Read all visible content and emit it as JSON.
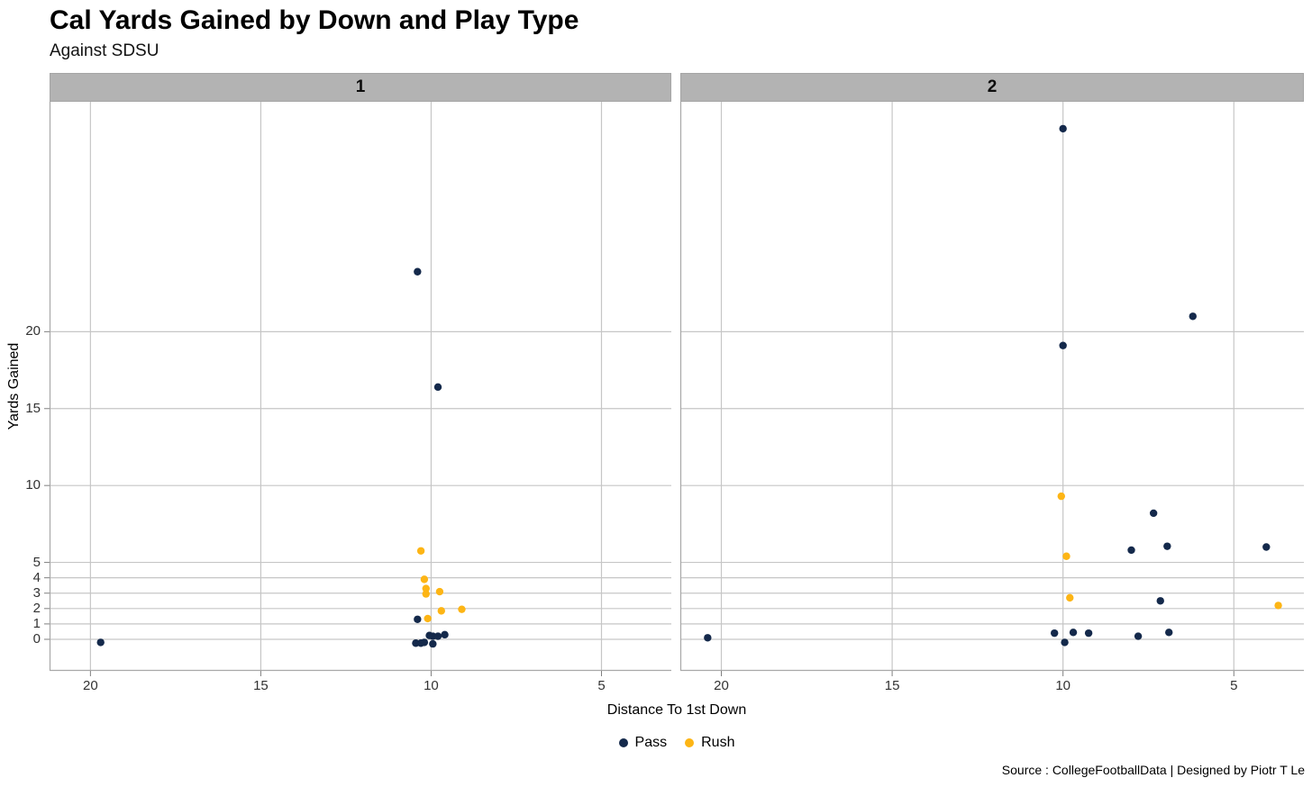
{
  "header": {
    "title": "Cal Yards Gained by Down and Play Type",
    "subtitle": "Against SDSU"
  },
  "caption": "Source : CollegeFootballData | Designed by Piotr T Le",
  "axes": {
    "x": {
      "title": "Distance To 1st Down",
      "breaks": [
        20,
        15,
        10,
        5
      ],
      "domain": [
        21.2,
        2.95
      ],
      "reversed": true
    },
    "y": {
      "title": "Yards Gained",
      "breaks": [
        0,
        1,
        2,
        3,
        4,
        5,
        10,
        15,
        20
      ],
      "domain": [
        -2.05,
        34.95
      ]
    }
  },
  "legend": {
    "items": [
      {
        "label": "Pass",
        "color": "#14294b"
      },
      {
        "label": "Rush",
        "color": "#fdb515"
      }
    ]
  },
  "colors": {
    "pass": "#14294b",
    "rush": "#fdb515",
    "strip_bg": "#b3b3b3",
    "grid": "#c6c6c6",
    "axis_line": "#a8a8a8",
    "tick": "#7f7f7f"
  },
  "chart_data": {
    "type": "scatter",
    "title": "Cal Yards Gained by Down and Play Type",
    "subtitle": "Against SDSU",
    "xlabel": "Distance To 1st Down",
    "ylabel": "Yards Gained",
    "x_reversed": true,
    "xlim": [
      21.2,
      2.95
    ],
    "ylim": [
      -2.05,
      34.95
    ],
    "x_breaks": [
      20,
      15,
      10,
      5
    ],
    "y_breaks": [
      0,
      1,
      2,
      3,
      4,
      5,
      10,
      15,
      20
    ],
    "grid": true,
    "legend_position": "bottom",
    "facet_variable": "Down",
    "facets": [
      {
        "label": "1",
        "series": [
          {
            "name": "Pass",
            "points": [
              [
                19.7,
                -0.2
              ],
              [
                10.4,
                23.9
              ],
              [
                9.8,
                16.4
              ],
              [
                10.4,
                1.3
              ],
              [
                10.45,
                -0.25
              ],
              [
                10.3,
                -0.25
              ],
              [
                10.2,
                -0.2
              ],
              [
                9.95,
                -0.3
              ],
              [
                10.05,
                0.25
              ],
              [
                9.95,
                0.2
              ],
              [
                9.8,
                0.2
              ],
              [
                9.6,
                0.3
              ]
            ]
          },
          {
            "name": "Rush",
            "points": [
              [
                10.3,
                5.75
              ],
              [
                10.2,
                3.9
              ],
              [
                10.15,
                3.3
              ],
              [
                10.15,
                2.95
              ],
              [
                9.75,
                3.1
              ],
              [
                9.7,
                1.85
              ],
              [
                9.1,
                1.95
              ],
              [
                10.1,
                1.35
              ]
            ]
          }
        ]
      },
      {
        "label": "2",
        "series": [
          {
            "name": "Pass",
            "points": [
              [
                20.4,
                0.1
              ],
              [
                10.0,
                33.2
              ],
              [
                6.2,
                21.0
              ],
              [
                10.0,
                19.1
              ],
              [
                7.35,
                8.2
              ],
              [
                8.0,
                5.8
              ],
              [
                6.95,
                6.05
              ],
              [
                4.05,
                6.0
              ],
              [
                7.15,
                2.5
              ],
              [
                10.25,
                0.4
              ],
              [
                9.7,
                0.45
              ],
              [
                9.25,
                0.4
              ],
              [
                7.8,
                0.2
              ],
              [
                6.9,
                0.45
              ],
              [
                9.95,
                -0.2
              ]
            ]
          },
          {
            "name": "Rush",
            "points": [
              [
                10.05,
                9.3
              ],
              [
                9.9,
                5.4
              ],
              [
                9.8,
                2.7
              ],
              [
                3.7,
                2.2
              ]
            ]
          }
        ]
      }
    ]
  }
}
